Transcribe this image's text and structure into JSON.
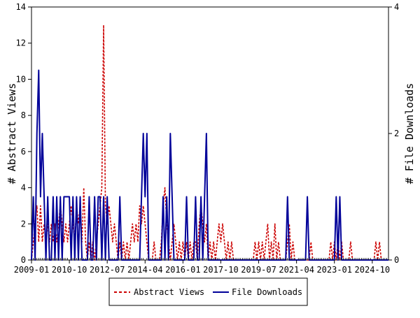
{
  "chart_data": {
    "type": "line",
    "xlabel": "",
    "ylabel_left": "# Abstract Views",
    "ylabel_right": "# File Downloads",
    "ylim_left": [
      0,
      14
    ],
    "ylim_right": [
      0,
      4
    ],
    "y_ticks_left": [
      "0",
      "2",
      "4",
      "6",
      "8",
      "10",
      "12",
      "14"
    ],
    "y_ticks_right": [
      "0",
      "2",
      "4"
    ],
    "x_ticks": [
      "2009-01",
      "2010-10",
      "2012-07",
      "2014-04",
      "2016-01",
      "2017-10",
      "2019-07",
      "2021-04",
      "2023-01",
      "2024-10"
    ],
    "xlim": [
      "2009-01",
      "2025-07"
    ],
    "grid": false,
    "legend_position": "bottom",
    "series": [
      {
        "name": "Abstract Views",
        "axis": "left",
        "color": "#cc0000",
        "style": "dashed",
        "points": [
          [
            "2009-01",
            0
          ],
          [
            "2009-03",
            2
          ],
          [
            "2009-04",
            3
          ],
          [
            "2009-05",
            1
          ],
          [
            "2009-06",
            3
          ],
          [
            "2009-07",
            1
          ],
          [
            "2009-08",
            2
          ],
          [
            "2009-09",
            1
          ],
          [
            "2009-10",
            2
          ],
          [
            "2009-11",
            1
          ],
          [
            "2009-12",
            2
          ],
          [
            "2010-01",
            1
          ],
          [
            "2010-02",
            2
          ],
          [
            "2010-03",
            1
          ],
          [
            "2010-04",
            2
          ],
          [
            "2010-05",
            3
          ],
          [
            "2010-06",
            2
          ],
          [
            "2010-07",
            1
          ],
          [
            "2010-08",
            2
          ],
          [
            "2010-09",
            1
          ],
          [
            "2010-10",
            2
          ],
          [
            "2010-11",
            3
          ],
          [
            "2010-12",
            2
          ],
          [
            "2011-01",
            1
          ],
          [
            "2011-02",
            3
          ],
          [
            "2011-03",
            2
          ],
          [
            "2011-04",
            3
          ],
          [
            "2011-05",
            1
          ],
          [
            "2011-06",
            4
          ],
          [
            "2011-07",
            1
          ],
          [
            "2011-08",
            0
          ],
          [
            "2011-09",
            1
          ],
          [
            "2011-10",
            0
          ],
          [
            "2011-11",
            1
          ],
          [
            "2011-12",
            0
          ],
          [
            "2012-01",
            1
          ],
          [
            "2012-02",
            2
          ],
          [
            "2012-03",
            3
          ],
          [
            "2012-04",
            4
          ],
          [
            "2012-05",
            13
          ],
          [
            "2012-06",
            3
          ],
          [
            "2012-07",
            2
          ],
          [
            "2012-08",
            3
          ],
          [
            "2012-09",
            2
          ],
          [
            "2012-10",
            1
          ],
          [
            "2012-11",
            2
          ],
          [
            "2012-12",
            1
          ],
          [
            "2013-01",
            0
          ],
          [
            "2013-02",
            1
          ],
          [
            "2013-03",
            0
          ],
          [
            "2013-04",
            1
          ],
          [
            "2013-05",
            0
          ],
          [
            "2013-06",
            1
          ],
          [
            "2013-07",
            0
          ],
          [
            "2013-08",
            1
          ],
          [
            "2013-09",
            2
          ],
          [
            "2013-10",
            1
          ],
          [
            "2013-11",
            2
          ],
          [
            "2013-12",
            1
          ],
          [
            "2014-01",
            3
          ],
          [
            "2014-02",
            2
          ],
          [
            "2014-03",
            3
          ],
          [
            "2014-04",
            2
          ],
          [
            "2014-05",
            1
          ],
          [
            "2014-06",
            0
          ],
          [
            "2014-08",
            0
          ],
          [
            "2014-09",
            1
          ],
          [
            "2014-10",
            0
          ],
          [
            "2014-12",
            0
          ],
          [
            "2015-01",
            1
          ],
          [
            "2015-02",
            3
          ],
          [
            "2015-03",
            4
          ],
          [
            "2015-04",
            2
          ],
          [
            "2015-05",
            1
          ],
          [
            "2015-06",
            0
          ],
          [
            "2015-07",
            1
          ],
          [
            "2015-08",
            2
          ],
          [
            "2015-09",
            1
          ],
          [
            "2015-10",
            0
          ],
          [
            "2015-11",
            1
          ],
          [
            "2015-12",
            0
          ],
          [
            "2016-01",
            1
          ],
          [
            "2016-02",
            0
          ],
          [
            "2016-03",
            1
          ],
          [
            "2016-04",
            0
          ],
          [
            "2016-05",
            1
          ],
          [
            "2016-06",
            0
          ],
          [
            "2016-07",
            1
          ],
          [
            "2016-08",
            1
          ],
          [
            "2016-09",
            0
          ],
          [
            "2016-10",
            2
          ],
          [
            "2016-11",
            3
          ],
          [
            "2016-12",
            2
          ],
          [
            "2017-01",
            1
          ],
          [
            "2017-02",
            2
          ],
          [
            "2017-03",
            0
          ],
          [
            "2017-04",
            1
          ],
          [
            "2017-05",
            0
          ],
          [
            "2017-06",
            1
          ],
          [
            "2017-07",
            0
          ],
          [
            "2017-08",
            1
          ],
          [
            "2017-09",
            2
          ],
          [
            "2017-10",
            1
          ],
          [
            "2017-11",
            2
          ],
          [
            "2017-12",
            1
          ],
          [
            "2018-01",
            0
          ],
          [
            "2018-02",
            1
          ],
          [
            "2018-03",
            0
          ],
          [
            "2018-04",
            1
          ],
          [
            "2018-05",
            0
          ],
          [
            "2019-04",
            0
          ],
          [
            "2019-05",
            1
          ],
          [
            "2019-06",
            0
          ],
          [
            "2019-07",
            1
          ],
          [
            "2019-08",
            0
          ],
          [
            "2019-09",
            1
          ],
          [
            "2019-10",
            0
          ],
          [
            "2019-11",
            1
          ],
          [
            "2019-12",
            2
          ],
          [
            "2020-01",
            0
          ],
          [
            "2020-02",
            1
          ],
          [
            "2020-03",
            0
          ],
          [
            "2020-04",
            2
          ],
          [
            "2020-05",
            0
          ],
          [
            "2020-06",
            1
          ],
          [
            "2020-07",
            0
          ],
          [
            "2020-10",
            0
          ],
          [
            "2020-11",
            1
          ],
          [
            "2020-12",
            2
          ],
          [
            "2021-01",
            0
          ],
          [
            "2021-02",
            1
          ],
          [
            "2021-03",
            0
          ],
          [
            "2021-11",
            0
          ],
          [
            "2021-12",
            1
          ],
          [
            "2022-01",
            0
          ],
          [
            "2022-10",
            0
          ],
          [
            "2022-11",
            1
          ],
          [
            "2022-12",
            0
          ],
          [
            "2023-01",
            1
          ],
          [
            "2023-02",
            0
          ],
          [
            "2023-03",
            1
          ],
          [
            "2023-04",
            0
          ],
          [
            "2023-05",
            1
          ],
          [
            "2023-06",
            0
          ],
          [
            "2023-09",
            0
          ],
          [
            "2023-10",
            1
          ],
          [
            "2023-11",
            0
          ],
          [
            "2024-11",
            0
          ],
          [
            "2024-12",
            1
          ],
          [
            "2025-01",
            0
          ],
          [
            "2025-02",
            1
          ],
          [
            "2025-03",
            0
          ],
          [
            "2025-07",
            0
          ]
        ]
      },
      {
        "name": "File Downloads",
        "axis": "right",
        "color": "#000099",
        "style": "solid",
        "points": [
          [
            "2009-01",
            0
          ],
          [
            "2009-02",
            1
          ],
          [
            "2009-03",
            0
          ],
          [
            "2009-04",
            2
          ],
          [
            "2009-05",
            3
          ],
          [
            "2009-06",
            1
          ],
          [
            "2009-07",
            2
          ],
          [
            "2009-08",
            1
          ],
          [
            "2009-09",
            0
          ],
          [
            "2009-10",
            1
          ],
          [
            "2009-11",
            0
          ],
          [
            "2009-12",
            0
          ],
          [
            "2010-01",
            1
          ],
          [
            "2010-02",
            0
          ],
          [
            "2010-03",
            1
          ],
          [
            "2010-04",
            0
          ],
          [
            "2010-05",
            1
          ],
          [
            "2010-06",
            0
          ],
          [
            "2010-07",
            1
          ],
          [
            "2010-08",
            1
          ],
          [
            "2010-09",
            1
          ],
          [
            "2010-10",
            1
          ],
          [
            "2010-11",
            0
          ],
          [
            "2010-12",
            1
          ],
          [
            "2011-01",
            0
          ],
          [
            "2011-02",
            1
          ],
          [
            "2011-03",
            0
          ],
          [
            "2011-04",
            1
          ],
          [
            "2011-05",
            0
          ],
          [
            "2011-06",
            0
          ],
          [
            "2011-07",
            0
          ],
          [
            "2011-08",
            0
          ],
          [
            "2011-09",
            1
          ],
          [
            "2011-10",
            0
          ],
          [
            "2011-11",
            0
          ],
          [
            "2011-12",
            1
          ],
          [
            "2012-01",
            0
          ],
          [
            "2012-02",
            1
          ],
          [
            "2012-03",
            1
          ],
          [
            "2012-04",
            0
          ],
          [
            "2012-05",
            1
          ],
          [
            "2012-06",
            0
          ],
          [
            "2012-07",
            1
          ],
          [
            "2012-08",
            0
          ],
          [
            "2012-09",
            0
          ],
          [
            "2013-01",
            0
          ],
          [
            "2013-02",
            1
          ],
          [
            "2013-03",
            0
          ],
          [
            "2014-01",
            0
          ],
          [
            "2014-02",
            1
          ],
          [
            "2014-03",
            2
          ],
          [
            "2014-04",
            1
          ],
          [
            "2014-05",
            2
          ],
          [
            "2014-06",
            0
          ],
          [
            "2015-01",
            0
          ],
          [
            "2015-02",
            1
          ],
          [
            "2015-03",
            0
          ],
          [
            "2015-04",
            1
          ],
          [
            "2015-05",
            0
          ],
          [
            "2015-06",
            2
          ],
          [
            "2015-07",
            1
          ],
          [
            "2015-08",
            0
          ],
          [
            "2016-02",
            0
          ],
          [
            "2016-03",
            1
          ],
          [
            "2016-04",
            0
          ],
          [
            "2016-07",
            0
          ],
          [
            "2016-08",
            1
          ],
          [
            "2016-09",
            0
          ],
          [
            "2016-10",
            0
          ],
          [
            "2016-11",
            1
          ],
          [
            "2016-12",
            0
          ],
          [
            "2017-01",
            1
          ],
          [
            "2017-02",
            2
          ],
          [
            "2017-03",
            0
          ],
          [
            "2017-04",
            0
          ],
          [
            "2020-10",
            0
          ],
          [
            "2020-11",
            1
          ],
          [
            "2020-12",
            0
          ],
          [
            "2021-09",
            0
          ],
          [
            "2021-10",
            1
          ],
          [
            "2021-11",
            0
          ],
          [
            "2023-01",
            0
          ],
          [
            "2023-02",
            1
          ],
          [
            "2023-03",
            0
          ],
          [
            "2023-04",
            1
          ],
          [
            "2023-05",
            0
          ],
          [
            "2025-07",
            0
          ]
        ]
      }
    ]
  }
}
